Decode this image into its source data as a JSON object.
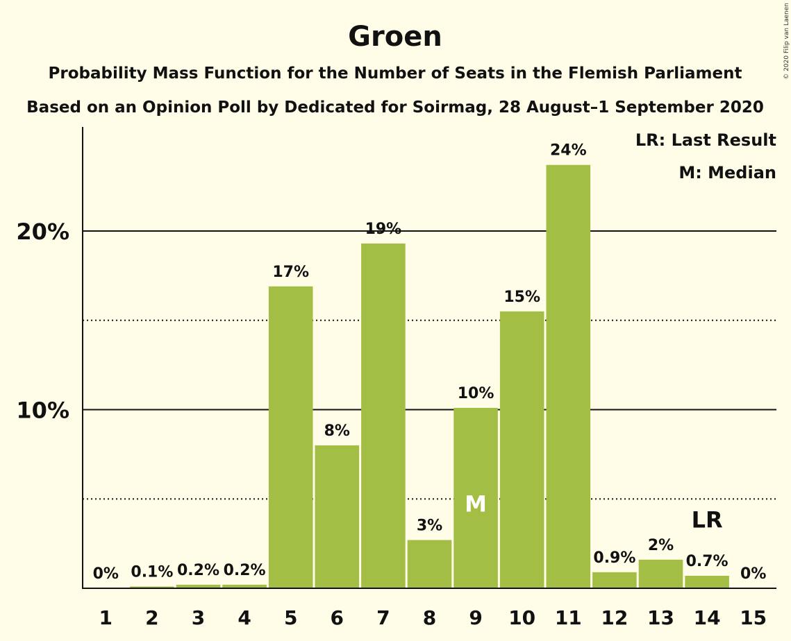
{
  "chart_data": {
    "type": "bar",
    "title": "Groen",
    "subtitle": "Probability Mass Function for the Number of Seats in the Flemish Parliament",
    "subtitle2": "Based on an Opinion Poll by Dedicated for Soirmag, 28 August–1 September 2020",
    "copyright": "© 2020 Filip van Laenen",
    "legend": {
      "lr": "LR: Last Result",
      "m": "M: Median",
      "placement": "top-right"
    },
    "categories": [
      "1",
      "2",
      "3",
      "4",
      "5",
      "6",
      "7",
      "8",
      "9",
      "10",
      "11",
      "12",
      "13",
      "14",
      "15"
    ],
    "values": [
      0,
      0.1,
      0.2,
      0.2,
      16.9,
      8.0,
      19.3,
      2.7,
      10.1,
      15.5,
      23.7,
      0.9,
      1.6,
      0.7,
      0
    ],
    "data_labels": [
      "0%",
      "0.1%",
      "0.2%",
      "0.2%",
      "17%",
      "8%",
      "19%",
      "3%",
      "10%",
      "15%",
      "24%",
      "0.9%",
      "2%",
      "0.7%",
      "0%"
    ],
    "ylim": [
      0,
      26
    ],
    "yticks": [
      {
        "value": 10,
        "label": "10%"
      },
      {
        "value": 20,
        "label": "20%"
      }
    ],
    "minor_gridlines": [
      5,
      15
    ],
    "median_seat": "9",
    "median_mark": "M",
    "last_result_seat": "14",
    "last_result_mark": "LR",
    "bar_color": "#A3BE44",
    "background": "#FFFDE8"
  }
}
